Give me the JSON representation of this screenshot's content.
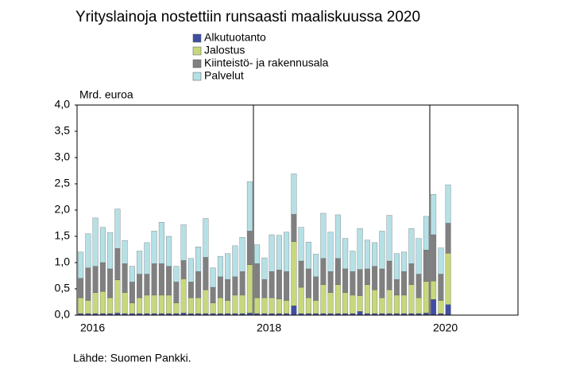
{
  "chart_data": {
    "type": "stacked_bar",
    "title": "Yrityslainoja nostettiin runsaasti maaliskuussa 2020",
    "y_axis_label": "Mrd. euroa",
    "source": "Lähde: Suomen Pankki.",
    "categories": [
      "2016",
      null,
      null,
      null,
      null,
      null,
      null,
      null,
      null,
      null,
      null,
      null,
      null,
      null,
      null,
      null,
      null,
      null,
      null,
      null,
      null,
      null,
      null,
      null,
      "2018",
      null,
      null,
      null,
      null,
      null,
      null,
      null,
      null,
      null,
      null,
      null,
      null,
      null,
      null,
      null,
      null,
      null,
      null,
      null,
      null,
      null,
      null,
      null,
      "2020",
      null,
      null
    ],
    "ylim": [
      0,
      4
    ],
    "yticks": [
      {
        "value": 0,
        "label": "0,0"
      },
      {
        "value": 0.5,
        "label": "0,5"
      },
      {
        "value": 1,
        "label": "1,0"
      },
      {
        "value": 1.5,
        "label": "1,5"
      },
      {
        "value": 2,
        "label": "2,0"
      },
      {
        "value": 2.5,
        "label": "2,5"
      },
      {
        "value": 3,
        "label": "3,0"
      },
      {
        "value": 3.5,
        "label": "3,5"
      },
      {
        "value": 4,
        "label": "4,0"
      }
    ],
    "series": [
      {
        "name": "Alkutuotanto",
        "color": "#3f4ea1",
        "values": [
          0.03,
          0.03,
          0.03,
          0.03,
          0.03,
          0.04,
          0.03,
          0.03,
          0.03,
          0.03,
          0.03,
          0.03,
          0.03,
          0.03,
          0.04,
          0.03,
          0.03,
          0.03,
          0.03,
          0.03,
          0.03,
          0.03,
          0.03,
          0.04,
          0.03,
          0.03,
          0.03,
          0.03,
          0.03,
          0.18,
          0.03,
          0.03,
          0.03,
          0.03,
          0.03,
          0.03,
          0.03,
          0.03,
          0.07,
          0.03,
          0.03,
          0.03,
          0.03,
          0.03,
          0.03,
          0.03,
          0.03,
          0.04,
          0.3,
          0.03,
          0.2
        ]
      },
      {
        "name": "Jalostus",
        "color": "#c6d87c",
        "values": [
          0.3,
          0.25,
          0.4,
          0.42,
          0.3,
          0.63,
          0.4,
          0.2,
          0.3,
          0.35,
          0.35,
          0.35,
          0.35,
          0.2,
          0.65,
          0.3,
          0.3,
          0.45,
          0.2,
          0.3,
          0.25,
          0.35,
          0.35,
          0.92,
          0.3,
          0.3,
          0.3,
          0.28,
          0.25,
          1.22,
          0.5,
          0.3,
          0.25,
          0.55,
          0.4,
          0.55,
          0.4,
          0.35,
          0.3,
          0.55,
          0.45,
          0.3,
          0.45,
          0.35,
          0.35,
          0.55,
          0.3,
          0.6,
          0.35,
          0.25,
          0.98
        ]
      },
      {
        "name": "Kiinteistö- ja rakennusala",
        "color": "#808080",
        "values": [
          0.37,
          0.62,
          0.5,
          0.55,
          0.55,
          0.6,
          0.55,
          0.4,
          0.45,
          0.4,
          0.6,
          0.6,
          0.55,
          0.4,
          0.35,
          0.3,
          0.5,
          0.62,
          0.3,
          0.4,
          0.4,
          0.35,
          0.45,
          0.64,
          0.65,
          0.35,
          0.5,
          0.55,
          0.55,
          0.52,
          0.5,
          0.55,
          0.45,
          0.5,
          0.4,
          0.5,
          0.45,
          0.45,
          0.5,
          0.3,
          0.45,
          0.55,
          0.55,
          0.3,
          0.45,
          0.4,
          0.45,
          0.6,
          0.88,
          0.5,
          0.57
        ]
      },
      {
        "name": "Palvelut",
        "color": "#b5e0e6",
        "values": [
          0.5,
          0.65,
          0.92,
          0.67,
          0.69,
          0.75,
          0.44,
          0.3,
          0.44,
          0.6,
          0.62,
          0.79,
          0.57,
          0.3,
          0.68,
          0.45,
          0.47,
          0.74,
          0.37,
          0.39,
          0.49,
          0.59,
          0.65,
          0.94,
          0.36,
          0.41,
          0.7,
          0.66,
          0.75,
          0.77,
          0.64,
          0.51,
          0.43,
          0.86,
          0.75,
          0.83,
          0.58,
          0.39,
          0.78,
          0.55,
          0.45,
          0.72,
          0.87,
          0.49,
          0.37,
          0.67,
          0.68,
          0.64,
          0.77,
          0.5,
          0.73
        ]
      }
    ]
  }
}
